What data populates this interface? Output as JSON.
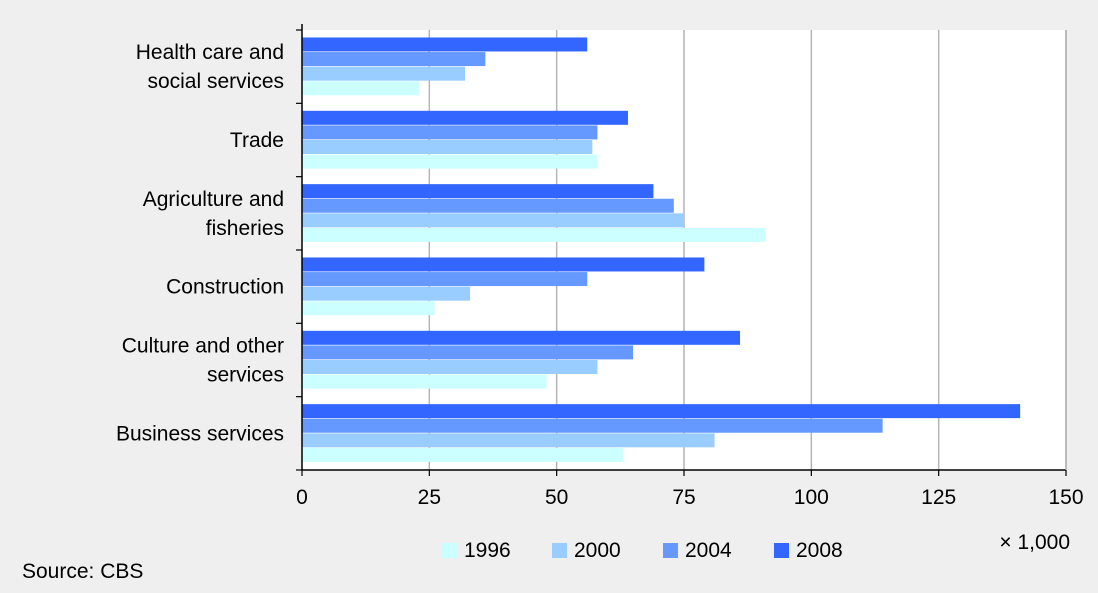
{
  "chart_data": {
    "type": "bar",
    "orientation": "horizontal",
    "categories": [
      [
        "Health care and",
        "social services"
      ],
      [
        "Trade"
      ],
      [
        "Agriculture and",
        "fisheries"
      ],
      [
        "Construction"
      ],
      [
        "Culture and other",
        "services"
      ],
      [
        "Business services"
      ]
    ],
    "series": [
      {
        "name": "1996",
        "color": "#ccffff",
        "values": [
          23,
          58,
          91,
          26,
          48,
          63
        ]
      },
      {
        "name": "2000",
        "color": "#99ccff",
        "values": [
          32,
          57,
          75,
          33,
          58,
          81
        ]
      },
      {
        "name": "2004",
        "color": "#6699ff",
        "values": [
          36,
          58,
          73,
          56,
          65,
          114
        ]
      },
      {
        "name": "2008",
        "color": "#3366ff",
        "values": [
          56,
          64,
          69,
          79,
          86,
          141
        ]
      }
    ],
    "xlim": [
      0,
      150
    ],
    "xticks": [
      0,
      25,
      50,
      75,
      100,
      125,
      150
    ],
    "unit_label": "× 1,000",
    "grid": "vertical",
    "legend_position": "bottom"
  },
  "source": "Source: CBS"
}
